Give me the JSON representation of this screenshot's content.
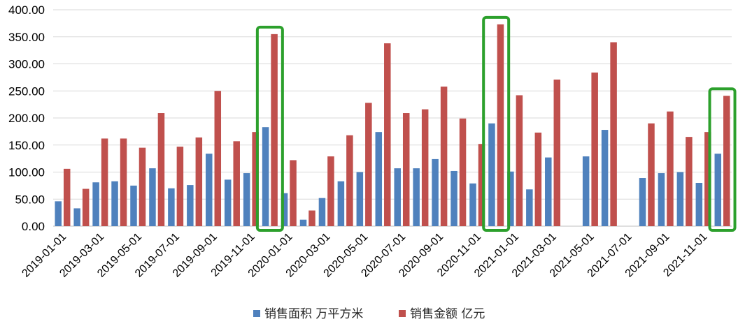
{
  "chart_data": {
    "type": "bar",
    "categories": [
      "2019-01-01",
      "2019-02-01",
      "2019-03-01",
      "2019-04-01",
      "2019-05-01",
      "2019-06-01",
      "2019-07-01",
      "2019-08-01",
      "2019-09-01",
      "2019-10-01",
      "2019-11-01",
      "2019-12-01",
      "2020-01-01",
      "2020-02-01",
      "2020-03-01",
      "2020-04-01",
      "2020-05-01",
      "2020-06-01",
      "2020-07-01",
      "2020-08-01",
      "2020-09-01",
      "2020-10-01",
      "2020-11-01",
      "2020-12-01",
      "2021-01-01",
      "2021-02-01",
      "2021-03-01",
      "2021-04-01",
      "2021-05-01",
      "2021-06-01",
      "2021-07-01",
      "2021-08-01",
      "2021-09-01",
      "2021-10-01",
      "2021-11-01",
      "2021-12-01"
    ],
    "tick_labels": [
      "2019-01-01",
      "2019-03-01",
      "2019-05-01",
      "2019-07-01",
      "2019-09-01",
      "2019-11-01",
      "2020-01-01",
      "2020-03-01",
      "2020-05-01",
      "2020-07-01",
      "2020-09-01",
      "2020-11-01",
      "2021-01-01",
      "2021-03-01",
      "2021-05-01",
      "2021-07-01",
      "2021-09-01",
      "2021-11-01"
    ],
    "series": [
      {
        "name": "销售面积 万平方米",
        "color": "#4F81BD",
        "values": [
          46,
          33,
          81,
          83,
          75,
          107,
          70,
          76,
          134,
          86,
          98,
          183,
          61,
          12,
          52,
          83,
          100,
          174,
          107,
          107,
          124,
          102,
          79,
          190,
          101,
          68,
          127,
          null,
          129,
          178,
          null,
          89,
          98,
          100,
          80,
          134
        ]
      },
      {
        "name": "销售金额 亿元",
        "color": "#C0504D",
        "values": [
          106,
          69,
          162,
          162,
          145,
          209,
          147,
          164,
          250,
          157,
          174,
          355,
          122,
          29,
          129,
          168,
          228,
          338,
          209,
          216,
          258,
          199,
          152,
          373,
          242,
          173,
          271,
          null,
          284,
          340,
          null,
          190,
          212,
          165,
          174,
          241
        ]
      }
    ],
    "ylim": [
      0,
      400
    ],
    "yticks": [
      "0.00",
      "50.00",
      "100.00",
      "150.00",
      "200.00",
      "250.00",
      "300.00",
      "350.00",
      "400.00"
    ],
    "highlighted_categories": [
      "2019-12-01",
      "2020-12-01",
      "2021-12-01"
    ],
    "highlight_color": "#2CA02C",
    "grid": true,
    "legend_position": "bottom"
  }
}
